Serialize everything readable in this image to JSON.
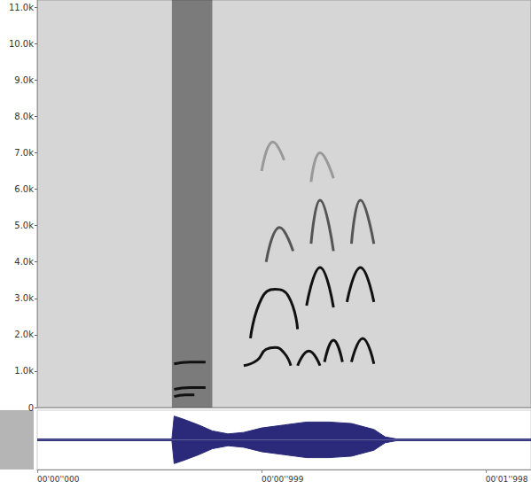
{
  "chart_data": [
    {
      "type": "spectrogram",
      "xlim": [
        0,
        2.2
      ],
      "ylim": [
        0,
        11200
      ],
      "yticks": [
        0,
        {
          "value": 1000,
          "label": "1.0k"
        },
        {
          "value": 2000,
          "label": "2.0k"
        },
        {
          "value": 3000,
          "label": "3.0k"
        },
        {
          "value": 4000,
          "label": "4.0k"
        },
        {
          "value": 5000,
          "label": "5.0k"
        },
        {
          "value": 6000,
          "label": "6.0k"
        },
        {
          "value": 7000,
          "label": "7.0k"
        },
        {
          "value": 8000,
          "label": "8.0k"
        },
        {
          "value": 9000,
          "label": "9.0k"
        },
        {
          "value": 10000,
          "label": "10.0k"
        },
        {
          "value": 11000,
          "label": "11.0k"
        }
      ],
      "tick_labels": "y",
      "grid": false,
      "bands": [
        [
          0.6,
          0.78
        ]
      ],
      "series": [
        {
          "color": "#111111",
          "values": [
            [
              0.92,
              1150
            ],
            [
              0.98,
              1300
            ],
            [
              1.02,
              1600
            ],
            [
              1.06,
              1650
            ],
            [
              1.1,
              1500
            ],
            [
              1.13,
              1150
            ],
            null,
            [
              1.16,
              1150
            ],
            [
              1.21,
              1550
            ],
            [
              1.26,
              1150
            ],
            null,
            [
              1.28,
              1250
            ],
            [
              1.32,
              1850
            ],
            [
              1.36,
              1250
            ],
            null,
            [
              1.4,
              1250
            ],
            [
              1.45,
              1900
            ],
            [
              1.5,
              1200
            ]
          ]
        },
        {
          "color": "#111111",
          "values": [
            [
              0.95,
              1900
            ],
            [
              1.0,
              3000
            ],
            [
              1.06,
              3250
            ],
            [
              1.12,
              3050
            ],
            [
              1.16,
              2150
            ],
            null,
            [
              1.2,
              2800
            ],
            [
              1.26,
              3850
            ],
            [
              1.32,
              2750
            ],
            null,
            [
              1.38,
              2900
            ],
            [
              1.44,
              3850
            ],
            [
              1.5,
              2900
            ]
          ]
        },
        {
          "color": "#555555",
          "values": [
            [
              1.02,
              4000
            ],
            [
              1.08,
              4950
            ],
            [
              1.14,
              4300
            ],
            null,
            [
              1.22,
              4500
            ],
            [
              1.26,
              5700
            ],
            [
              1.32,
              4300
            ],
            null,
            [
              1.4,
              4500
            ],
            [
              1.44,
              5700
            ],
            [
              1.5,
              4500
            ]
          ]
        },
        {
          "color": "#999999",
          "values": [
            [
              1.0,
              6500
            ],
            [
              1.05,
              7300
            ],
            [
              1.1,
              6800
            ],
            null,
            [
              1.22,
              6200
            ],
            [
              1.26,
              7000
            ],
            [
              1.32,
              6300
            ]
          ]
        },
        {
          "color": "#111111",
          "values": [
            [
              0.61,
              1200
            ],
            [
              0.68,
              1250
            ],
            [
              0.75,
              1250
            ]
          ]
        },
        {
          "color": "#111111",
          "values": [
            [
              0.61,
              500
            ],
            [
              0.68,
              550
            ],
            [
              0.75,
              550
            ]
          ]
        },
        {
          "color": "#111111",
          "values": [
            [
              0.61,
              300
            ],
            [
              0.66,
              350
            ],
            [
              0.7,
              350
            ]
          ]
        }
      ]
    },
    {
      "type": "waveform",
      "xlim": [
        0,
        2.2
      ],
      "ylim": [
        -1,
        1
      ],
      "xticks": [
        {
          "value": 0,
          "label": "00'00''000"
        },
        {
          "value": 0.999,
          "label": "00'00''999"
        },
        {
          "value": 1.998,
          "label": "00'01''998"
        }
      ],
      "tick_labels": "x",
      "color": "#2b2a7a",
      "x": [
        0,
        0.6,
        0.61,
        0.65,
        0.72,
        0.78,
        0.85,
        0.92,
        1.0,
        1.1,
        1.2,
        1.3,
        1.4,
        1.5,
        1.55,
        1.6,
        2.2
      ],
      "upper": [
        0.03,
        0.03,
        0.8,
        0.7,
        0.5,
        0.3,
        0.2,
        0.25,
        0.4,
        0.5,
        0.6,
        0.6,
        0.55,
        0.35,
        0.1,
        0.03,
        0.03
      ],
      "lower": [
        -0.03,
        -0.03,
        -0.8,
        -0.7,
        -0.5,
        -0.3,
        -0.2,
        -0.25,
        -0.4,
        -0.5,
        -0.6,
        -0.6,
        -0.55,
        -0.35,
        -0.1,
        -0.03,
        -0.03
      ]
    }
  ]
}
